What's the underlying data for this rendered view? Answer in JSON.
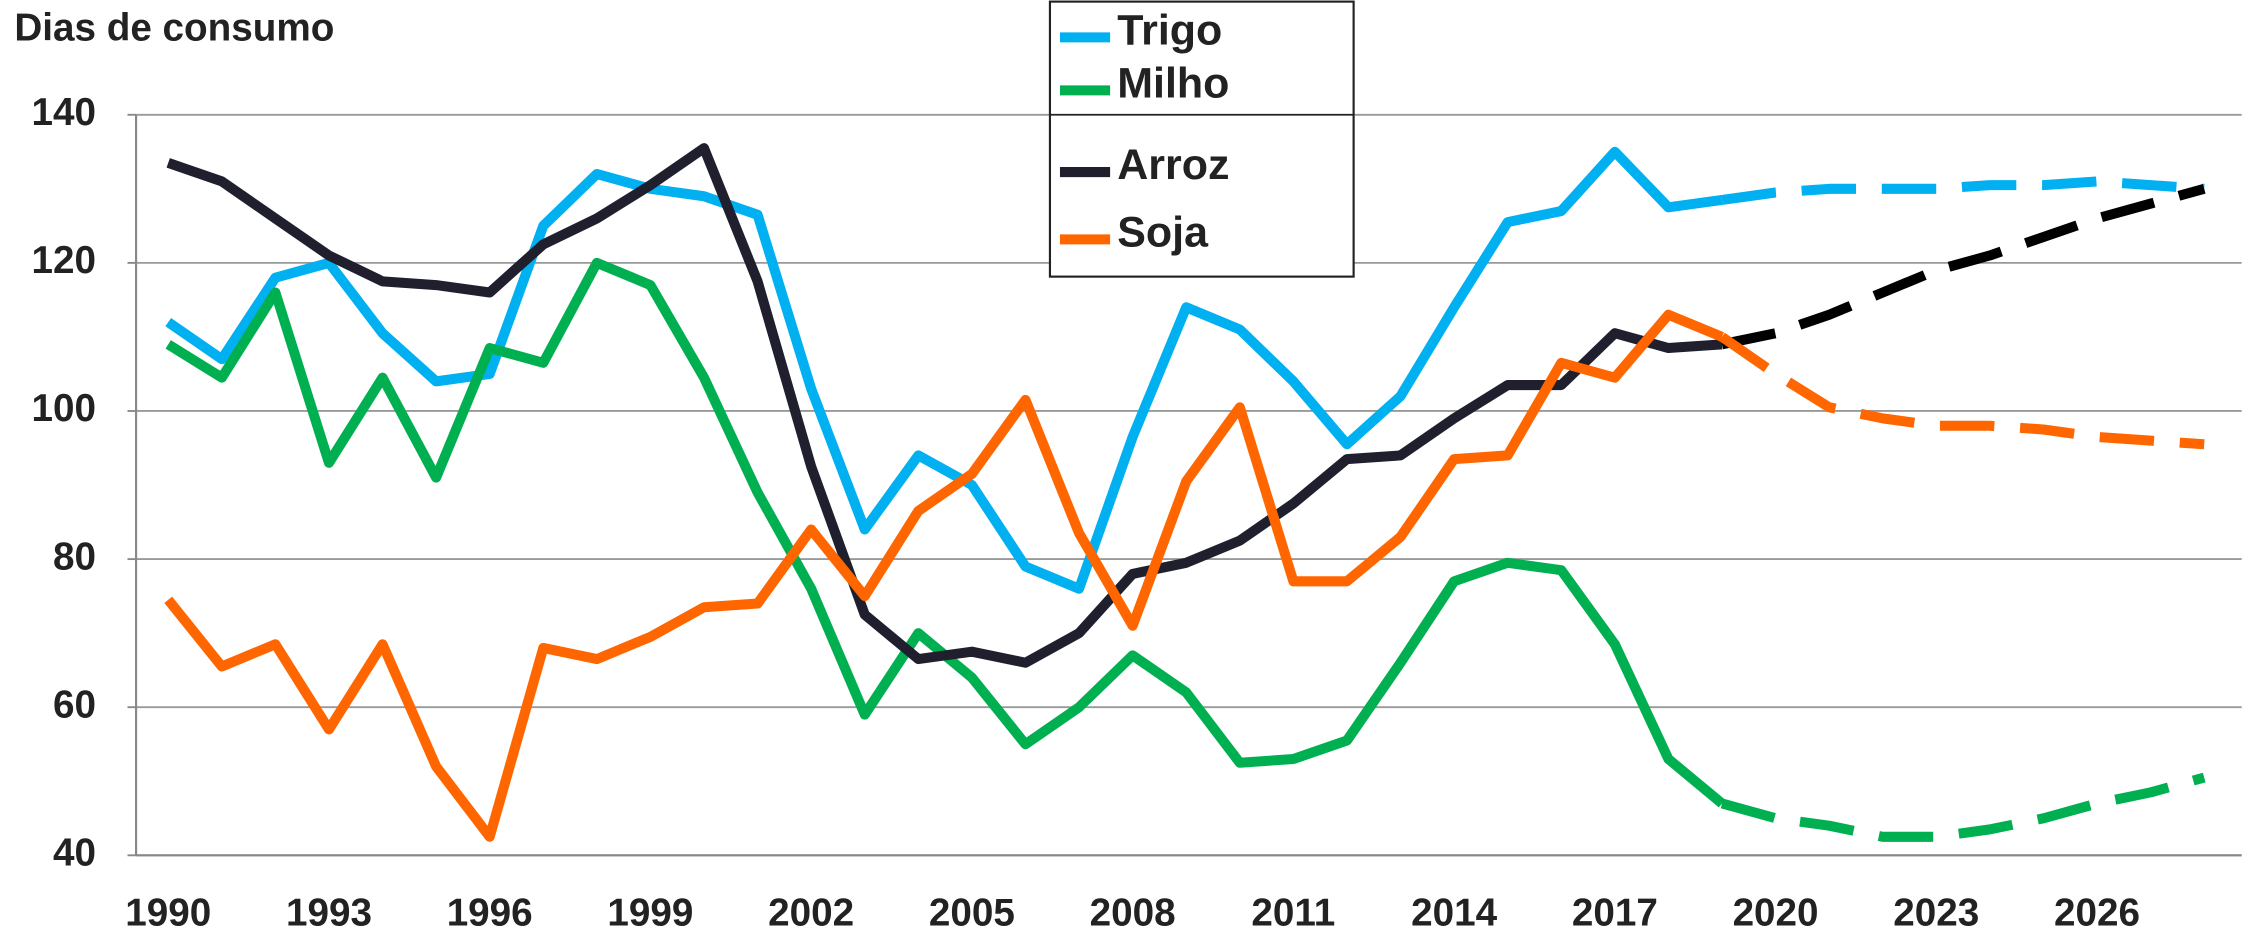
{
  "chart_data": {
    "type": "line",
    "title": "Dias de consumo",
    "x": [
      1990,
      1991,
      1992,
      1993,
      1994,
      1995,
      1996,
      1997,
      1998,
      1999,
      2000,
      2001,
      2002,
      2003,
      2004,
      2005,
      2006,
      2007,
      2008,
      2009,
      2010,
      2011,
      2012,
      2013,
      2014,
      2015,
      2016,
      2017,
      2018,
      2019,
      2020,
      2021,
      2022,
      2023,
      2024,
      2025,
      2026,
      2027,
      2028
    ],
    "xlim": [
      1989.4,
      2028.7
    ],
    "xticks": [
      1990,
      1993,
      1996,
      1999,
      2002,
      2005,
      2008,
      2011,
      2014,
      2017,
      2020,
      2023,
      2026
    ],
    "ylim": [
      40,
      140
    ],
    "yticks": [
      40,
      60,
      80,
      100,
      120,
      140
    ],
    "grid": true,
    "legend": "top",
    "forecast_from": 2019,
    "series": [
      {
        "name": "Trigo",
        "color": "#00b0f0",
        "values": [
          112,
          107,
          118,
          120,
          110.5,
          104,
          105,
          125,
          132,
          130,
          129,
          126.5,
          103,
          84,
          94,
          90,
          79,
          76,
          96.5,
          114,
          111,
          104,
          95.5,
          102,
          114,
          125.5,
          127,
          135,
          127.5,
          128.5,
          129.5,
          130,
          130,
          130,
          130.5,
          130.5,
          131,
          130.5,
          130
        ]
      },
      {
        "name": "Milho",
        "color": "#00b050",
        "values": [
          109,
          104.5,
          116,
          93,
          104.5,
          91,
          108.5,
          106.5,
          120,
          117,
          104.5,
          89,
          76,
          59,
          70,
          64,
          55,
          60,
          67,
          62,
          52.5,
          53,
          55.5,
          66,
          77,
          79.5,
          78.5,
          68.5,
          53,
          47,
          45,
          44,
          42.5,
          42.5,
          43.5,
          45,
          47,
          48.5,
          50.5
        ]
      },
      {
        "name": "Arroz",
        "color": "#1f1f2e",
        "values": [
          133.5,
          131,
          126,
          121,
          117.5,
          117,
          116,
          122.5,
          126,
          130.5,
          135.5,
          117.5,
          92.5,
          72.5,
          66.5,
          67.5,
          66,
          70,
          78,
          79.5,
          82.5,
          87.5,
          93.5,
          94,
          99,
          103.5,
          103.5,
          110.5,
          108.5,
          109,
          110.5,
          113,
          116,
          119,
          121,
          123.5,
          126,
          128,
          130
        ]
      },
      {
        "name": "Soja",
        "color": "#ff6600",
        "values": [
          74.5,
          65.5,
          68.5,
          57,
          68.5,
          52,
          42.5,
          68,
          66.5,
          69.5,
          73.5,
          74,
          84,
          75,
          86.5,
          91.5,
          101.5,
          83.5,
          71,
          90.5,
          100.5,
          77,
          77,
          83,
          93.5,
          94,
          106.5,
          104.5,
          113,
          110,
          105,
          100.5,
          99,
          98,
          98,
          97.5,
          96.5,
          96,
          95.5
        ]
      }
    ]
  }
}
